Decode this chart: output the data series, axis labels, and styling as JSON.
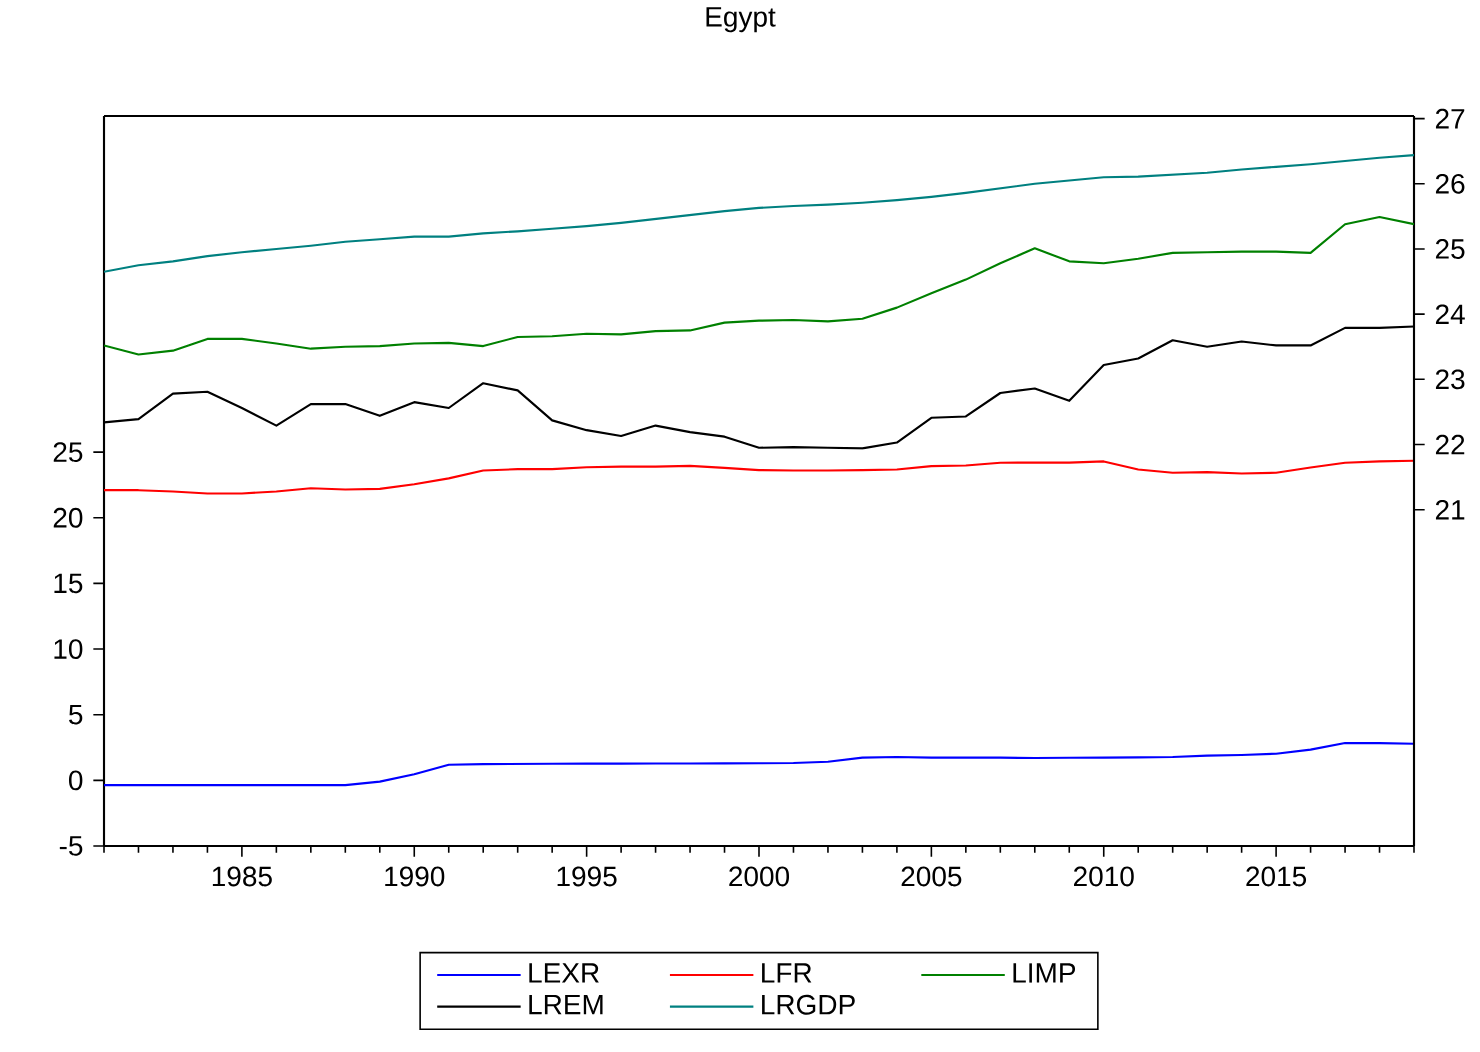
{
  "chart_data": {
    "type": "line",
    "title": "Egypt",
    "x": [
      1981,
      1982,
      1983,
      1984,
      1985,
      1986,
      1987,
      1988,
      1989,
      1990,
      1991,
      1992,
      1993,
      1994,
      1995,
      1996,
      1997,
      1998,
      1999,
      2000,
      2001,
      2002,
      2003,
      2004,
      2005,
      2006,
      2007,
      2008,
      2009,
      2010,
      2011,
      2012,
      2013,
      2014,
      2015,
      2016,
      2017,
      2018,
      2019
    ],
    "series": [
      {
        "name": "LEXR",
        "color": "#0000ff",
        "values": [
          -0.36,
          -0.36,
          -0.36,
          -0.36,
          -0.36,
          -0.36,
          -0.36,
          -0.36,
          -0.1,
          0.46,
          1.19,
          1.24,
          1.25,
          1.26,
          1.27,
          1.27,
          1.28,
          1.28,
          1.29,
          1.3,
          1.32,
          1.42,
          1.73,
          1.78,
          1.73,
          1.73,
          1.73,
          1.7,
          1.72,
          1.73,
          1.75,
          1.78,
          1.88,
          1.93,
          2.03,
          2.34,
          2.84,
          2.84,
          2.79
        ]
      },
      {
        "name": "LFR",
        "color": "#ff0000",
        "values": [
          22.1,
          22.1,
          22.0,
          21.85,
          21.85,
          22.0,
          22.25,
          22.15,
          22.2,
          22.55,
          23.0,
          23.6,
          23.7,
          23.7,
          23.85,
          23.9,
          23.9,
          23.95,
          23.8,
          23.63,
          23.6,
          23.6,
          23.63,
          23.68,
          23.93,
          23.98,
          24.19,
          24.2,
          24.2,
          24.29,
          23.68,
          23.43,
          23.48,
          23.37,
          23.43,
          23.83,
          24.19,
          24.29,
          24.34
        ]
      },
      {
        "name": "LIMP",
        "color": "#008000",
        "axis": "y2",
        "values": [
          23.52,
          23.38,
          23.44,
          23.62,
          23.62,
          23.55,
          23.47,
          23.5,
          23.51,
          23.55,
          23.56,
          23.51,
          23.65,
          23.66,
          23.7,
          23.69,
          23.74,
          23.75,
          23.87,
          23.9,
          23.91,
          23.89,
          23.93,
          24.1,
          24.32,
          24.53,
          24.78,
          25.01,
          24.81,
          24.78,
          24.85,
          24.94,
          24.95,
          24.96,
          24.96,
          24.94,
          25.38,
          25.49,
          25.38
        ]
      },
      {
        "name": "LREM",
        "color": "#000000",
        "axis": "y2",
        "values": [
          22.34,
          22.39,
          22.78,
          22.81,
          22.56,
          22.29,
          22.62,
          22.62,
          22.44,
          22.65,
          22.56,
          22.94,
          22.83,
          22.37,
          22.22,
          22.13,
          22.29,
          22.19,
          22.12,
          21.95,
          21.96,
          21.95,
          21.94,
          22.03,
          22.41,
          22.43,
          22.79,
          22.86,
          22.67,
          23.22,
          23.32,
          23.6,
          23.5,
          23.58,
          23.52,
          23.52,
          23.79,
          23.79,
          23.81
        ]
      },
      {
        "name": "LRGDP",
        "color": "#008080",
        "axis": "y2",
        "values": [
          24.65,
          24.75,
          24.81,
          24.89,
          24.95,
          25.0,
          25.05,
          25.11,
          25.15,
          25.19,
          25.19,
          25.24,
          25.27,
          25.31,
          25.35,
          25.4,
          25.46,
          25.52,
          25.58,
          25.63,
          25.66,
          25.68,
          25.71,
          25.75,
          25.8,
          25.86,
          25.93,
          26.0,
          26.05,
          26.1,
          26.11,
          26.14,
          26.17,
          26.22,
          26.26,
          26.3,
          26.35,
          26.4,
          26.44
        ]
      }
    ],
    "xlim": [
      1981,
      2019
    ],
    "xticks": [
      {
        "value": 1981,
        "label": null
      },
      {
        "value": 1982,
        "label": null
      },
      {
        "value": 1983,
        "label": null
      },
      {
        "value": 1984,
        "label": null
      },
      1985,
      {
        "value": 1986,
        "label": null
      },
      {
        "value": 1987,
        "label": null
      },
      {
        "value": 1988,
        "label": null
      },
      {
        "value": 1989,
        "label": null
      },
      1990,
      {
        "value": 1991,
        "label": null
      },
      {
        "value": 1992,
        "label": null
      },
      {
        "value": 1993,
        "label": null
      },
      {
        "value": 1994,
        "label": null
      },
      1995,
      {
        "value": 1996,
        "label": null
      },
      {
        "value": 1997,
        "label": null
      },
      {
        "value": 1998,
        "label": null
      },
      {
        "value": 1999,
        "label": null
      },
      2000,
      {
        "value": 2001,
        "label": null
      },
      {
        "value": 2002,
        "label": null
      },
      {
        "value": 2003,
        "label": null
      },
      {
        "value": 2004,
        "label": null
      },
      2005,
      {
        "value": 2006,
        "label": null
      },
      {
        "value": 2007,
        "label": null
      },
      {
        "value": 2008,
        "label": null
      },
      {
        "value": 2009,
        "label": null
      },
      2010,
      {
        "value": 2011,
        "label": null
      },
      {
        "value": 2012,
        "label": null
      },
      {
        "value": 2013,
        "label": null
      },
      {
        "value": 2014,
        "label": null
      },
      2015,
      {
        "value": 2016,
        "label": null
      },
      {
        "value": 2017,
        "label": null
      },
      {
        "value": 2018,
        "label": null
      },
      {
        "value": 2019,
        "label": null
      }
    ],
    "ylim": [
      -5,
      50.6
    ],
    "yticks": [
      -5,
      0,
      5,
      10,
      15,
      20,
      25
    ],
    "y2lim": [
      15.84,
      27.04
    ],
    "y2ticks": [
      21,
      22,
      23,
      24,
      25,
      26,
      27
    ],
    "legend": "bottom",
    "marker": "none",
    "line_style": "solid"
  }
}
